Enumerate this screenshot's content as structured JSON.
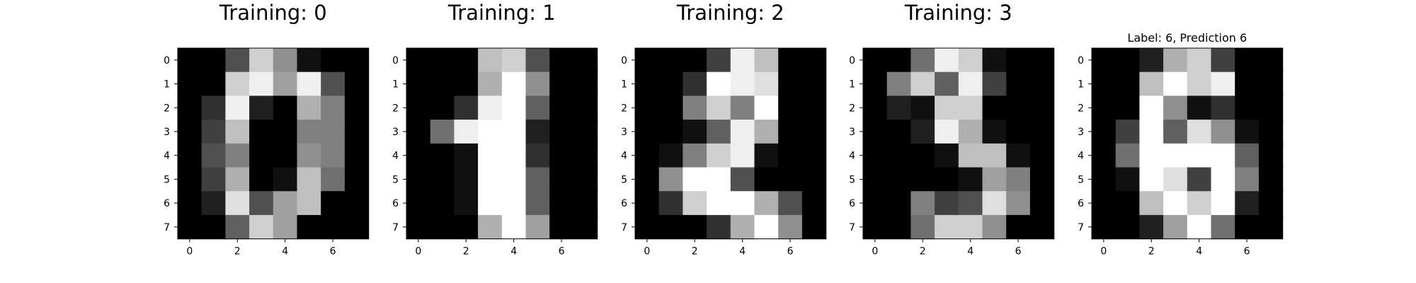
{
  "chart_data": [
    {
      "type": "heatmap",
      "title": "Training: 0",
      "colormap": "gray",
      "value_range": [
        0,
        16
      ],
      "x_ticks": [
        0,
        2,
        4,
        6
      ],
      "y_ticks": [
        0,
        1,
        2,
        3,
        4,
        5,
        6,
        7
      ],
      "pixels": [
        [
          0,
          0,
          5,
          13,
          9,
          1,
          0,
          0
        ],
        [
          0,
          0,
          13,
          15,
          10,
          15,
          5,
          0
        ],
        [
          0,
          3,
          15,
          2,
          0,
          11,
          8,
          0
        ],
        [
          0,
          4,
          12,
          0,
          0,
          8,
          8,
          0
        ],
        [
          0,
          5,
          8,
          0,
          0,
          9,
          8,
          0
        ],
        [
          0,
          4,
          11,
          0,
          1,
          12,
          7,
          0
        ],
        [
          0,
          2,
          14,
          5,
          10,
          12,
          0,
          0
        ],
        [
          0,
          0,
          6,
          13,
          10,
          0,
          0,
          0
        ]
      ]
    },
    {
      "type": "heatmap",
      "title": "Training: 1",
      "colormap": "gray",
      "value_range": [
        0,
        16
      ],
      "x_ticks": [
        0,
        2,
        4,
        6
      ],
      "y_ticks": [
        0,
        1,
        2,
        3,
        4,
        5,
        6,
        7
      ],
      "pixels": [
        [
          0,
          0,
          0,
          12,
          13,
          5,
          0,
          0
        ],
        [
          0,
          0,
          0,
          11,
          16,
          9,
          0,
          0
        ],
        [
          0,
          0,
          3,
          15,
          16,
          6,
          0,
          0
        ],
        [
          0,
          7,
          15,
          16,
          16,
          2,
          0,
          0
        ],
        [
          0,
          0,
          1,
          16,
          16,
          3,
          0,
          0
        ],
        [
          0,
          0,
          1,
          16,
          16,
          6,
          0,
          0
        ],
        [
          0,
          0,
          1,
          16,
          16,
          6,
          0,
          0
        ],
        [
          0,
          0,
          0,
          11,
          16,
          10,
          0,
          0
        ]
      ]
    },
    {
      "type": "heatmap",
      "title": "Training: 2",
      "colormap": "gray",
      "value_range": [
        0,
        16
      ],
      "x_ticks": [
        0,
        2,
        4,
        6
      ],
      "y_ticks": [
        0,
        1,
        2,
        3,
        4,
        5,
        6,
        7
      ],
      "pixels": [
        [
          0,
          0,
          0,
          4,
          15,
          12,
          0,
          0
        ],
        [
          0,
          0,
          3,
          16,
          15,
          14,
          0,
          0
        ],
        [
          0,
          0,
          8,
          13,
          8,
          16,
          0,
          0
        ],
        [
          0,
          0,
          1,
          6,
          15,
          11,
          0,
          0
        ],
        [
          0,
          1,
          8,
          13,
          15,
          1,
          0,
          0
        ],
        [
          0,
          9,
          16,
          16,
          5,
          0,
          0,
          0
        ],
        [
          0,
          3,
          13,
          16,
          16,
          11,
          5,
          0
        ],
        [
          0,
          0,
          0,
          3,
          11,
          16,
          9,
          0
        ]
      ]
    },
    {
      "type": "heatmap",
      "title": "Training: 3",
      "colormap": "gray",
      "value_range": [
        0,
        16
      ],
      "x_ticks": [
        0,
        2,
        4,
        6
      ],
      "y_ticks": [
        0,
        1,
        2,
        3,
        4,
        5,
        6,
        7
      ],
      "pixels": [
        [
          0,
          0,
          7,
          15,
          13,
          1,
          0,
          0
        ],
        [
          0,
          8,
          13,
          6,
          15,
          4,
          0,
          0
        ],
        [
          0,
          2,
          1,
          13,
          13,
          0,
          0,
          0
        ],
        [
          0,
          0,
          2,
          15,
          11,
          1,
          0,
          0
        ],
        [
          0,
          0,
          0,
          1,
          12,
          12,
          1,
          0
        ],
        [
          0,
          0,
          0,
          0,
          1,
          10,
          8,
          0
        ],
        [
          0,
          0,
          8,
          4,
          5,
          14,
          9,
          0
        ],
        [
          0,
          0,
          7,
          13,
          13,
          9,
          0,
          0
        ]
      ]
    },
    {
      "type": "heatmap",
      "title": "Label: 6, Prediction 6",
      "colormap": "gray",
      "value_range": [
        0,
        16
      ],
      "x_ticks": [
        0,
        2,
        4,
        6
      ],
      "y_ticks": [
        0,
        1,
        2,
        3,
        4,
        5,
        6,
        7
      ],
      "pixels": [
        [
          0,
          0,
          2,
          11,
          13,
          4,
          0,
          0
        ],
        [
          0,
          0,
          12,
          16,
          13,
          15,
          0,
          0
        ],
        [
          0,
          0,
          16,
          9,
          1,
          3,
          0,
          0
        ],
        [
          0,
          4,
          16,
          6,
          14,
          9,
          1,
          0
        ],
        [
          0,
          7,
          16,
          16,
          16,
          16,
          6,
          0
        ],
        [
          0,
          1,
          16,
          14,
          4,
          16,
          8,
          0
        ],
        [
          0,
          0,
          12,
          16,
          13,
          16,
          2,
          0
        ],
        [
          0,
          0,
          2,
          10,
          16,
          7,
          0,
          0
        ]
      ]
    }
  ]
}
